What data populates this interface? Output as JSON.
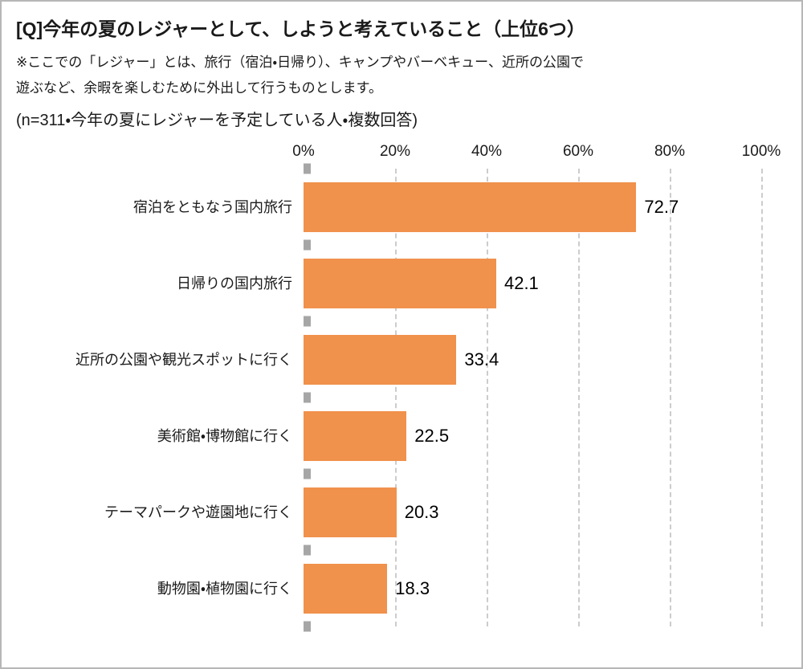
{
  "header": {
    "title": "[Q]今年の夏のレジャーとして、しようと考えていること（上位6つ）",
    "note_line1": "※ここでの「レジャー」とは、旅行（宿泊・日帰り）、キャンプやバーベキュー、近所の公園で",
    "note_line2": "遊ぶなど、余暇を楽しむために外出して行うものとします。",
    "sample_line": "(n=311・今年の夏にレジャーを予定している人・複数回答)"
  },
  "chart_data": {
    "type": "bar",
    "orientation": "horizontal",
    "categories": [
      "宿泊をともなう国内旅行",
      "日帰りの国内旅行",
      "近所の公園や観光スポットに行く",
      "美術館・博物館に行く",
      "テーマパークや遊園地に行く",
      "動物園・植物園に行く"
    ],
    "values": [
      72.7,
      42.1,
      33.4,
      22.5,
      20.3,
      18.3
    ],
    "value_labels": [
      "72.7",
      "42.1",
      "33.4",
      "22.5",
      "20.3",
      "18.3"
    ],
    "xlim": [
      0,
      100
    ],
    "x_tick_labels": [
      "0%",
      "20%",
      "40%",
      "60%",
      "80%",
      "100%"
    ],
    "grid": "dashed-vertical",
    "legend": "none",
    "bar_color": "#F0914C",
    "gridline_color": "#cccccc",
    "tick_color": "#a6a6a6"
  }
}
